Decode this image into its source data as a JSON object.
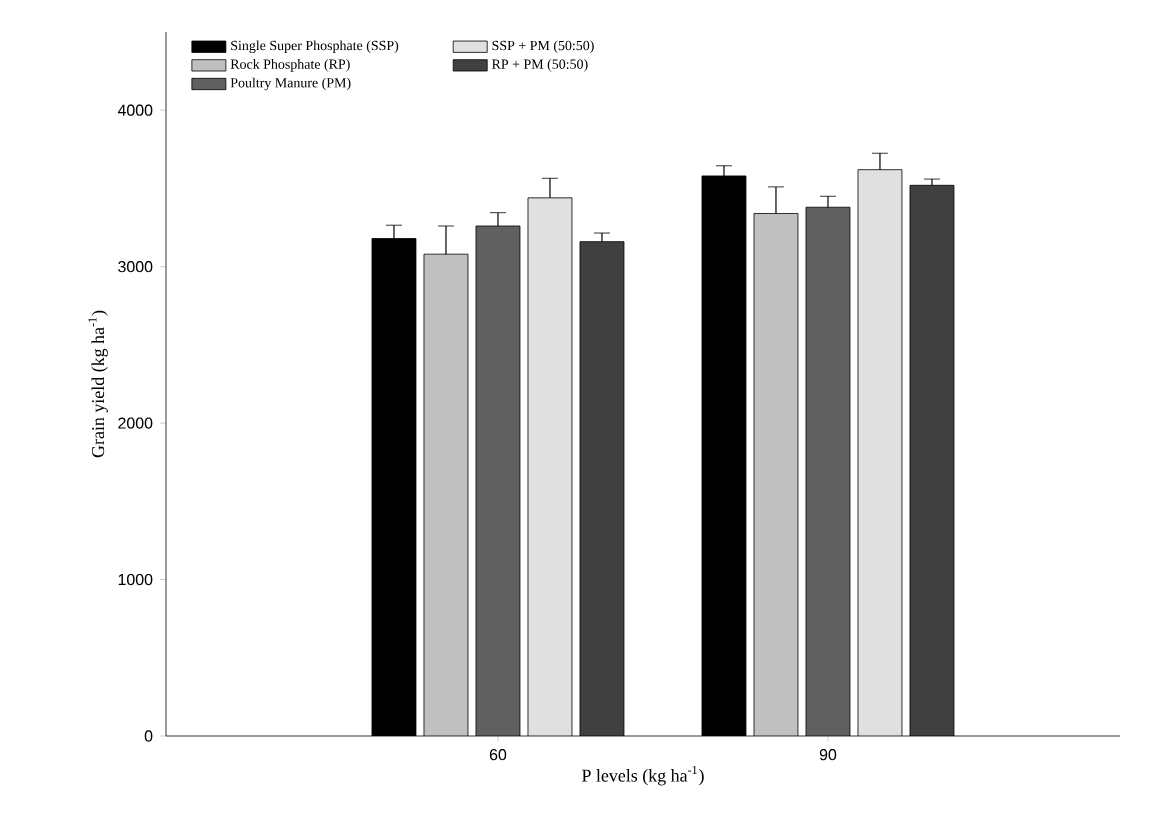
{
  "chart_data": {
    "type": "bar",
    "xlabel": "P levels (kg ha$^{-1}$)",
    "ylabel": "Grain yield (kg ha$^{-1}$)",
    "categories": [
      "60",
      "90"
    ],
    "series": [
      {
        "name": "Single Super Phosphate (SSP)",
        "color": "#000000",
        "values": [
          3180,
          3580
        ],
        "errors": [
          85,
          65
        ]
      },
      {
        "name": "Rock Phosphate (RP)",
        "color": "#c0c0c0",
        "values": [
          3080,
          3340
        ],
        "errors": [
          180,
          170
        ]
      },
      {
        "name": "Poultry Manure (PM)",
        "color": "#606060",
        "values": [
          3260,
          3380
        ],
        "errors": [
          85,
          70
        ]
      },
      {
        "name": "SSP + PM (50:50)",
        "color": "#e0e0e0",
        "values": [
          3440,
          3620
        ],
        "errors": [
          125,
          105
        ]
      },
      {
        "name": "RP + PM (50:50)",
        "color": "#404040",
        "values": [
          3160,
          3520
        ],
        "errors": [
          55,
          40
        ]
      }
    ],
    "ylim": [
      0,
      4500
    ],
    "yticks": [
      0,
      1000,
      2000,
      3000,
      4000
    ],
    "legend": "top left"
  }
}
